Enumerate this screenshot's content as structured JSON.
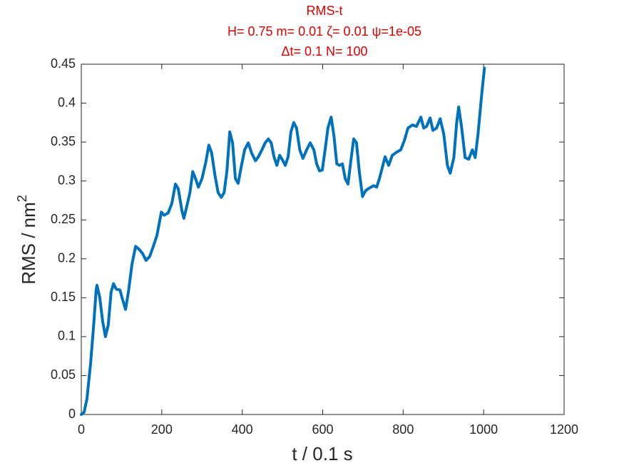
{
  "chart_data": {
    "type": "line",
    "title": [
      "RMS-t",
      "H= 0.75 m= 0.01 ζ= 0.01 ψ=1e-05",
      "Δt= 0.1 N= 100"
    ],
    "xlabel": "t / 0.1 s",
    "ylabel": [
      "RMS / nm",
      "2"
    ],
    "xlim": [
      0,
      1200
    ],
    "xticks": [
      0,
      200,
      400,
      600,
      800,
      1000,
      1200
    ],
    "ylim": [
      0,
      0.45
    ],
    "yticks": [
      0,
      0.05,
      0.1,
      0.15,
      0.2,
      0.25,
      0.3,
      0.35,
      0.4,
      0.45
    ],
    "grid": false,
    "series": [
      {
        "color": "#0072bd",
        "x": [
          0,
          7,
          14,
          23,
          30,
          37,
          39,
          46,
          53,
          60,
          67,
          74,
          80,
          87,
          96,
          103,
          110,
          117,
          126,
          135,
          144,
          152,
          161,
          170,
          179,
          188,
          199,
          206,
          216,
          225,
          234,
          241,
          250,
          255,
          262,
          270,
          277,
          284,
          291,
          300,
          309,
          317,
          324,
          332,
          340,
          348,
          355,
          362,
          369,
          376,
          383,
          390,
          397,
          406,
          415,
          424,
          433,
          440,
          449,
          457,
          465,
          472,
          479,
          486,
          493,
          500,
          507,
          514,
          521,
          528,
          535,
          543,
          551,
          560,
          569,
          578,
          585,
          592,
          599,
          606,
          613,
          621,
          628,
          635,
          642,
          649,
          656,
          663,
          670,
          677,
          684,
          691,
          699,
          706,
          713,
          720,
          727,
          734,
          741,
          748,
          755,
          764,
          773,
          784,
          794,
          803,
          812,
          823,
          833,
          844,
          851,
          858,
          867,
          874,
          883,
          892,
          901,
          910,
          917,
          926,
          933,
          938,
          945,
          954,
          963,
          972,
          979,
          986,
          995,
          1002
        ],
        "values": [
          0,
          0.003,
          0.02,
          0.065,
          0.11,
          0.16,
          0.166,
          0.15,
          0.12,
          0.1,
          0.115,
          0.157,
          0.168,
          0.161,
          0.16,
          0.147,
          0.135,
          0.157,
          0.193,
          0.216,
          0.212,
          0.207,
          0.198,
          0.203,
          0.216,
          0.23,
          0.26,
          0.256,
          0.259,
          0.271,
          0.296,
          0.29,
          0.262,
          0.252,
          0.267,
          0.285,
          0.312,
          0.303,
          0.292,
          0.303,
          0.323,
          0.346,
          0.336,
          0.308,
          0.285,
          0.279,
          0.285,
          0.313,
          0.363,
          0.349,
          0.303,
          0.297,
          0.317,
          0.34,
          0.349,
          0.335,
          0.326,
          0.331,
          0.34,
          0.349,
          0.354,
          0.349,
          0.331,
          0.32,
          0.333,
          0.327,
          0.32,
          0.331,
          0.363,
          0.375,
          0.368,
          0.34,
          0.329,
          0.34,
          0.349,
          0.34,
          0.322,
          0.313,
          0.314,
          0.34,
          0.368,
          0.382,
          0.358,
          0.322,
          0.32,
          0.322,
          0.303,
          0.296,
          0.326,
          0.354,
          0.349,
          0.312,
          0.28,
          0.287,
          0.29,
          0.292,
          0.294,
          0.292,
          0.303,
          0.317,
          0.331,
          0.32,
          0.333,
          0.337,
          0.34,
          0.352,
          0.368,
          0.372,
          0.37,
          0.382,
          0.368,
          0.37,
          0.381,
          0.365,
          0.368,
          0.38,
          0.36,
          0.32,
          0.31,
          0.33,
          0.375,
          0.395,
          0.37,
          0.33,
          0.328,
          0.34,
          0.33,
          0.36,
          0.41,
          0.445
        ]
      }
    ]
  }
}
